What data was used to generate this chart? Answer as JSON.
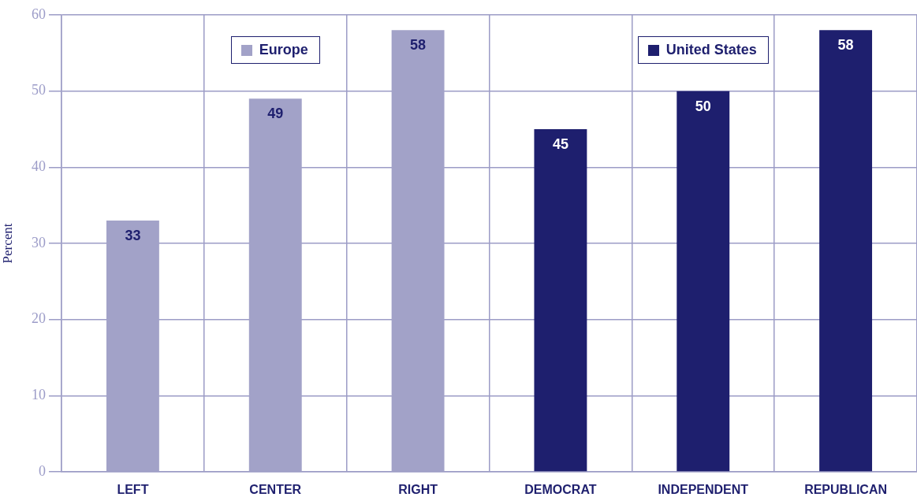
{
  "chart_data": {
    "type": "bar",
    "ylabel": "Percent",
    "categories": [
      "LEFT",
      "CENTER",
      "RIGHT",
      "DEMOCRAT",
      "INDEPENDENT",
      "REPUBLICAN"
    ],
    "series": [
      {
        "name": "Europe",
        "color": "#a2a2c8",
        "values": [
          33,
          49,
          58,
          null,
          null,
          null
        ]
      },
      {
        "name": "United States",
        "color": "#1e1f6e",
        "values": [
          null,
          null,
          null,
          45,
          50,
          58
        ]
      }
    ],
    "ylim": [
      0,
      60
    ],
    "yticks": [
      0,
      10,
      20,
      30,
      40,
      50,
      60
    ],
    "grid": true,
    "legend": "top",
    "data_labels": true
  }
}
